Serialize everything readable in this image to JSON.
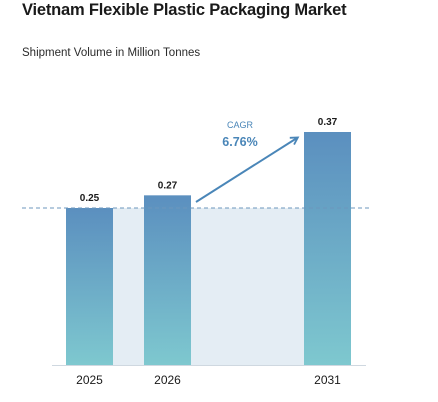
{
  "chart_data": {
    "type": "bar",
    "title": "Vietnam Flexible Plastic Packaging Market",
    "subtitle": "Shipment Volume in Million Tonnes",
    "categories": [
      "2025",
      "2026",
      "2031"
    ],
    "values": [
      0.25,
      0.27,
      0.37
    ],
    "value_labels": [
      "0.25",
      "0.27",
      "0.37"
    ],
    "ylim": [
      0,
      0.4
    ],
    "grid": false,
    "annotation": {
      "label": "CAGR",
      "value": "6.76%"
    },
    "reference_line": 0.25,
    "colors": {
      "bar_top": "#5b8fbf",
      "bar_bottom": "#7ec8cf",
      "band": "#e4edf4",
      "accent": "#4a86b8"
    }
  }
}
